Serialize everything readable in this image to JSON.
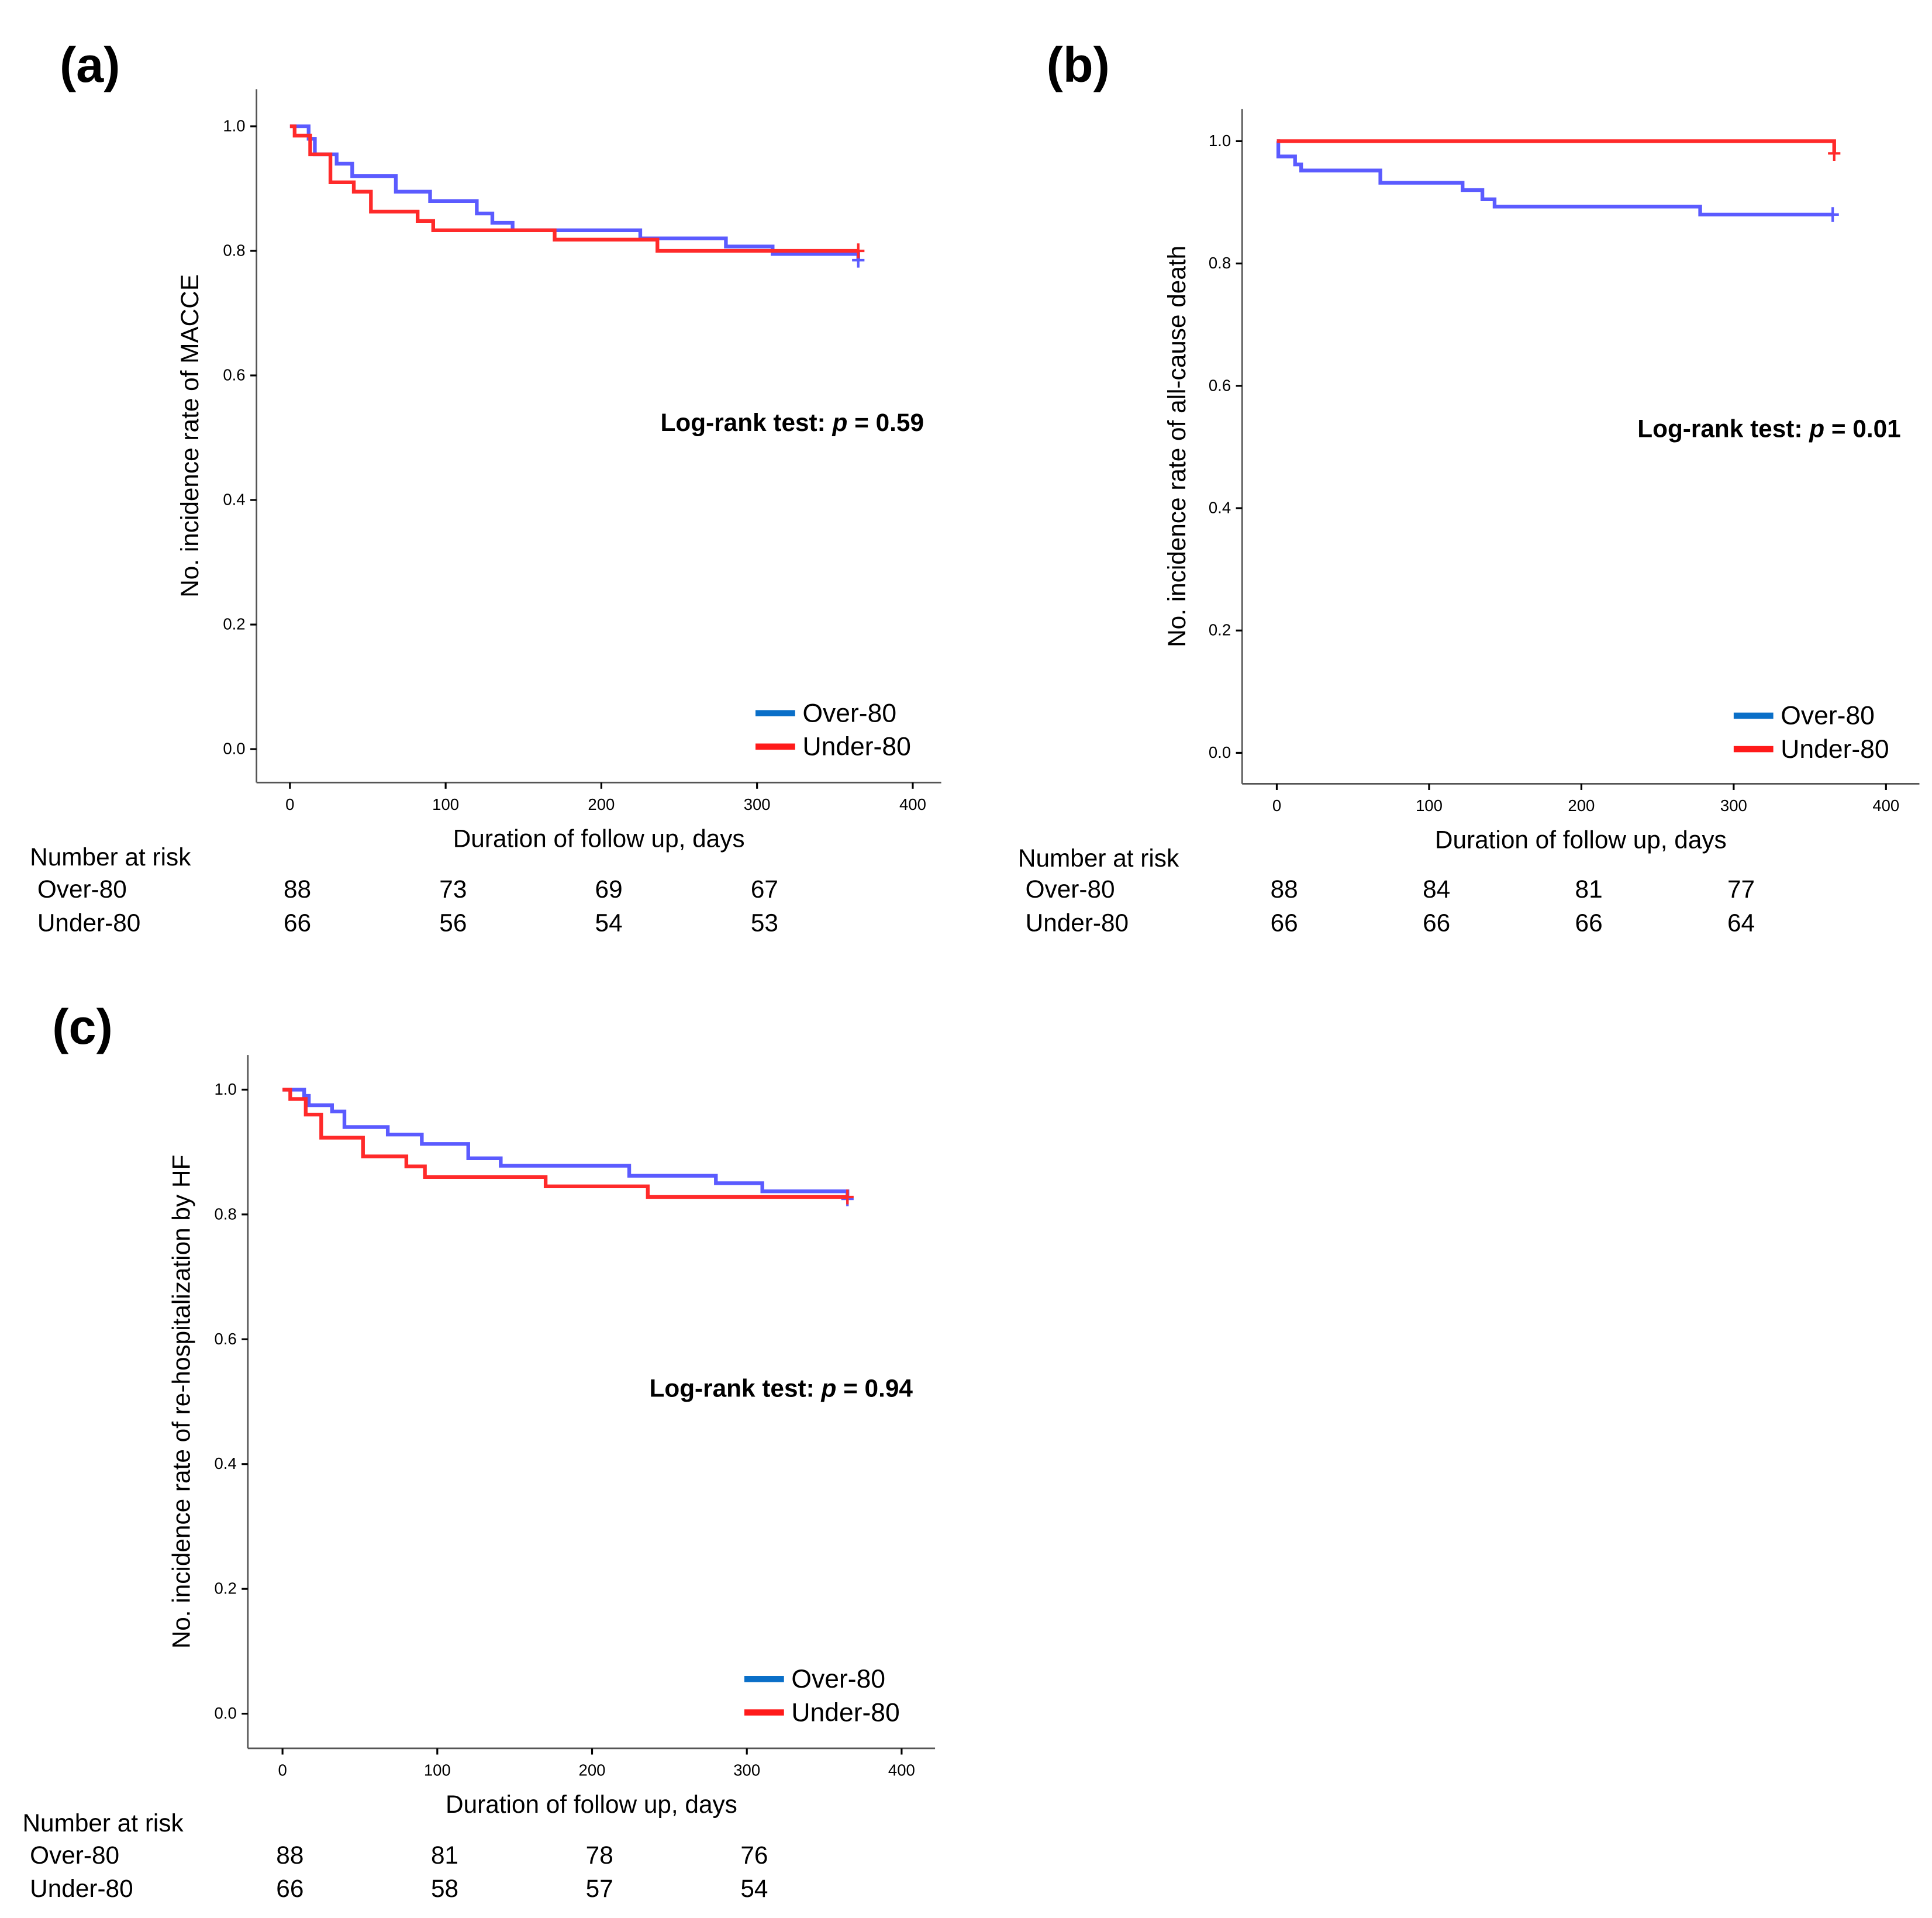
{
  "colors": {
    "over_curve": "#5b5bff",
    "under_curve": "#ff2a2a",
    "over_legend": "#0a6fc8",
    "under_legend": "#ff1a1a"
  },
  "chart_data": [
    {
      "type": "line",
      "panel_label": "(a)",
      "ylabel": "No. incidence rate of MACCE",
      "xlabel": "Duration of follow up, days",
      "xlim": [
        0,
        400
      ],
      "ylim": [
        0,
        1.0
      ],
      "x_ticks": [
        "0",
        "100",
        "200",
        "300",
        "400"
      ],
      "y_ticks": [
        "0.0",
        "0.2",
        "0.4",
        "0.6",
        "0.8",
        "1.0"
      ],
      "annotation_prefix": "Log-rank test: ",
      "annotation_p": "p",
      "annotation_value": " = 0.59",
      "legend": [
        "Over-80",
        "Under-80"
      ],
      "legend_position": "bottom-right",
      "series": [
        {
          "name": "Over-80",
          "steps": [
            [
              0,
              1.0
            ],
            [
              12,
              0.98
            ],
            [
              16,
              0.955
            ],
            [
              30,
              0.94
            ],
            [
              40,
              0.92
            ],
            [
              68,
              0.895
            ],
            [
              90,
              0.88
            ],
            [
              120,
              0.86
            ],
            [
              130,
              0.845
            ],
            [
              143,
              0.833
            ],
            [
              225,
              0.82
            ],
            [
              280,
              0.807
            ],
            [
              310,
              0.795
            ],
            [
              365,
              0.785
            ]
          ]
        },
        {
          "name": "Under-80",
          "steps": [
            [
              0,
              1.0
            ],
            [
              3,
              0.985
            ],
            [
              13,
              0.955
            ],
            [
              26,
              0.91
            ],
            [
              41,
              0.895
            ],
            [
              52,
              0.863
            ],
            [
              82,
              0.848
            ],
            [
              92,
              0.833
            ],
            [
              170,
              0.818
            ],
            [
              236,
              0.8
            ],
            [
              365,
              0.8
            ]
          ]
        }
      ],
      "risk_title": "Number at risk",
      "risk_rows": [
        {
          "name": "Over-80",
          "values": [
            "88",
            "73",
            "69",
            "67"
          ]
        },
        {
          "name": "Under-80",
          "values": [
            "66",
            "56",
            "54",
            "53"
          ]
        }
      ]
    },
    {
      "type": "line",
      "panel_label": "(b)",
      "ylabel": "No. incidence rate of all-cause death",
      "xlabel": "Duration of follow up, days",
      "xlim": [
        0,
        400
      ],
      "ylim": [
        0,
        1.0
      ],
      "x_ticks": [
        "0",
        "100",
        "200",
        "300",
        "400"
      ],
      "y_ticks": [
        "0.0",
        "0.2",
        "0.4",
        "0.6",
        "0.8",
        "1.0"
      ],
      "annotation_prefix": "Log-rank test: ",
      "annotation_p": "p",
      "annotation_value": " = 0.01",
      "legend": [
        "Over-80",
        "Under-80"
      ],
      "legend_position": "bottom-right",
      "series": [
        {
          "name": "Over-80",
          "steps": [
            [
              0,
              1.0
            ],
            [
              1,
              0.975
            ],
            [
              12,
              0.962
            ],
            [
              16,
              0.952
            ],
            [
              68,
              0.932
            ],
            [
              122,
              0.92
            ],
            [
              135,
              0.905
            ],
            [
              143,
              0.893
            ],
            [
              278,
              0.88
            ],
            [
              365,
              0.88
            ]
          ]
        },
        {
          "name": "Under-80",
          "steps": [
            [
              0,
              1.0
            ],
            [
              365,
              1.0
            ],
            [
              366,
              0.98
            ]
          ]
        }
      ],
      "risk_title": "Number at risk",
      "risk_rows": [
        {
          "name": "Over-80",
          "values": [
            "88",
            "84",
            "81",
            "77"
          ]
        },
        {
          "name": "Under-80",
          "values": [
            "66",
            "66",
            "66",
            "64"
          ]
        }
      ]
    },
    {
      "type": "line",
      "panel_label": "(c)",
      "ylabel": "No. incidence rate of re-hospitalization by HF",
      "xlabel": "Duration of follow up, days",
      "xlim": [
        0,
        400
      ],
      "ylim": [
        0,
        1.0
      ],
      "x_ticks": [
        "0",
        "100",
        "200",
        "300",
        "400"
      ],
      "y_ticks": [
        "0.0",
        "0.2",
        "0.4",
        "0.6",
        "0.8",
        "1.0"
      ],
      "annotation_prefix": "Log-rank test: ",
      "annotation_p": "p",
      "annotation_value": " = 0.94",
      "legend": [
        "Over-80",
        "Under-80"
      ],
      "legend_position": "bottom-right",
      "series": [
        {
          "name": "Over-80",
          "steps": [
            [
              0,
              1.0
            ],
            [
              14,
              0.99
            ],
            [
              17,
              0.975
            ],
            [
              32,
              0.965
            ],
            [
              40,
              0.94
            ],
            [
              68,
              0.928
            ],
            [
              90,
              0.913
            ],
            [
              120,
              0.89
            ],
            [
              141,
              0.878
            ],
            [
              224,
              0.862
            ],
            [
              280,
              0.85
            ],
            [
              310,
              0.837
            ],
            [
              365,
              0.825
            ]
          ]
        },
        {
          "name": "Under-80",
          "steps": [
            [
              0,
              1.0
            ],
            [
              5,
              0.985
            ],
            [
              15,
              0.96
            ],
            [
              25,
              0.923
            ],
            [
              52,
              0.893
            ],
            [
              80,
              0.877
            ],
            [
              92,
              0.86
            ],
            [
              170,
              0.845
            ],
            [
              236,
              0.828
            ],
            [
              365,
              0.828
            ]
          ]
        }
      ],
      "risk_title": "Number at risk",
      "risk_rows": [
        {
          "name": "Over-80",
          "values": [
            "88",
            "81",
            "78",
            "76"
          ]
        },
        {
          "name": "Under-80",
          "values": [
            "66",
            "58",
            "57",
            "54"
          ]
        }
      ]
    }
  ]
}
